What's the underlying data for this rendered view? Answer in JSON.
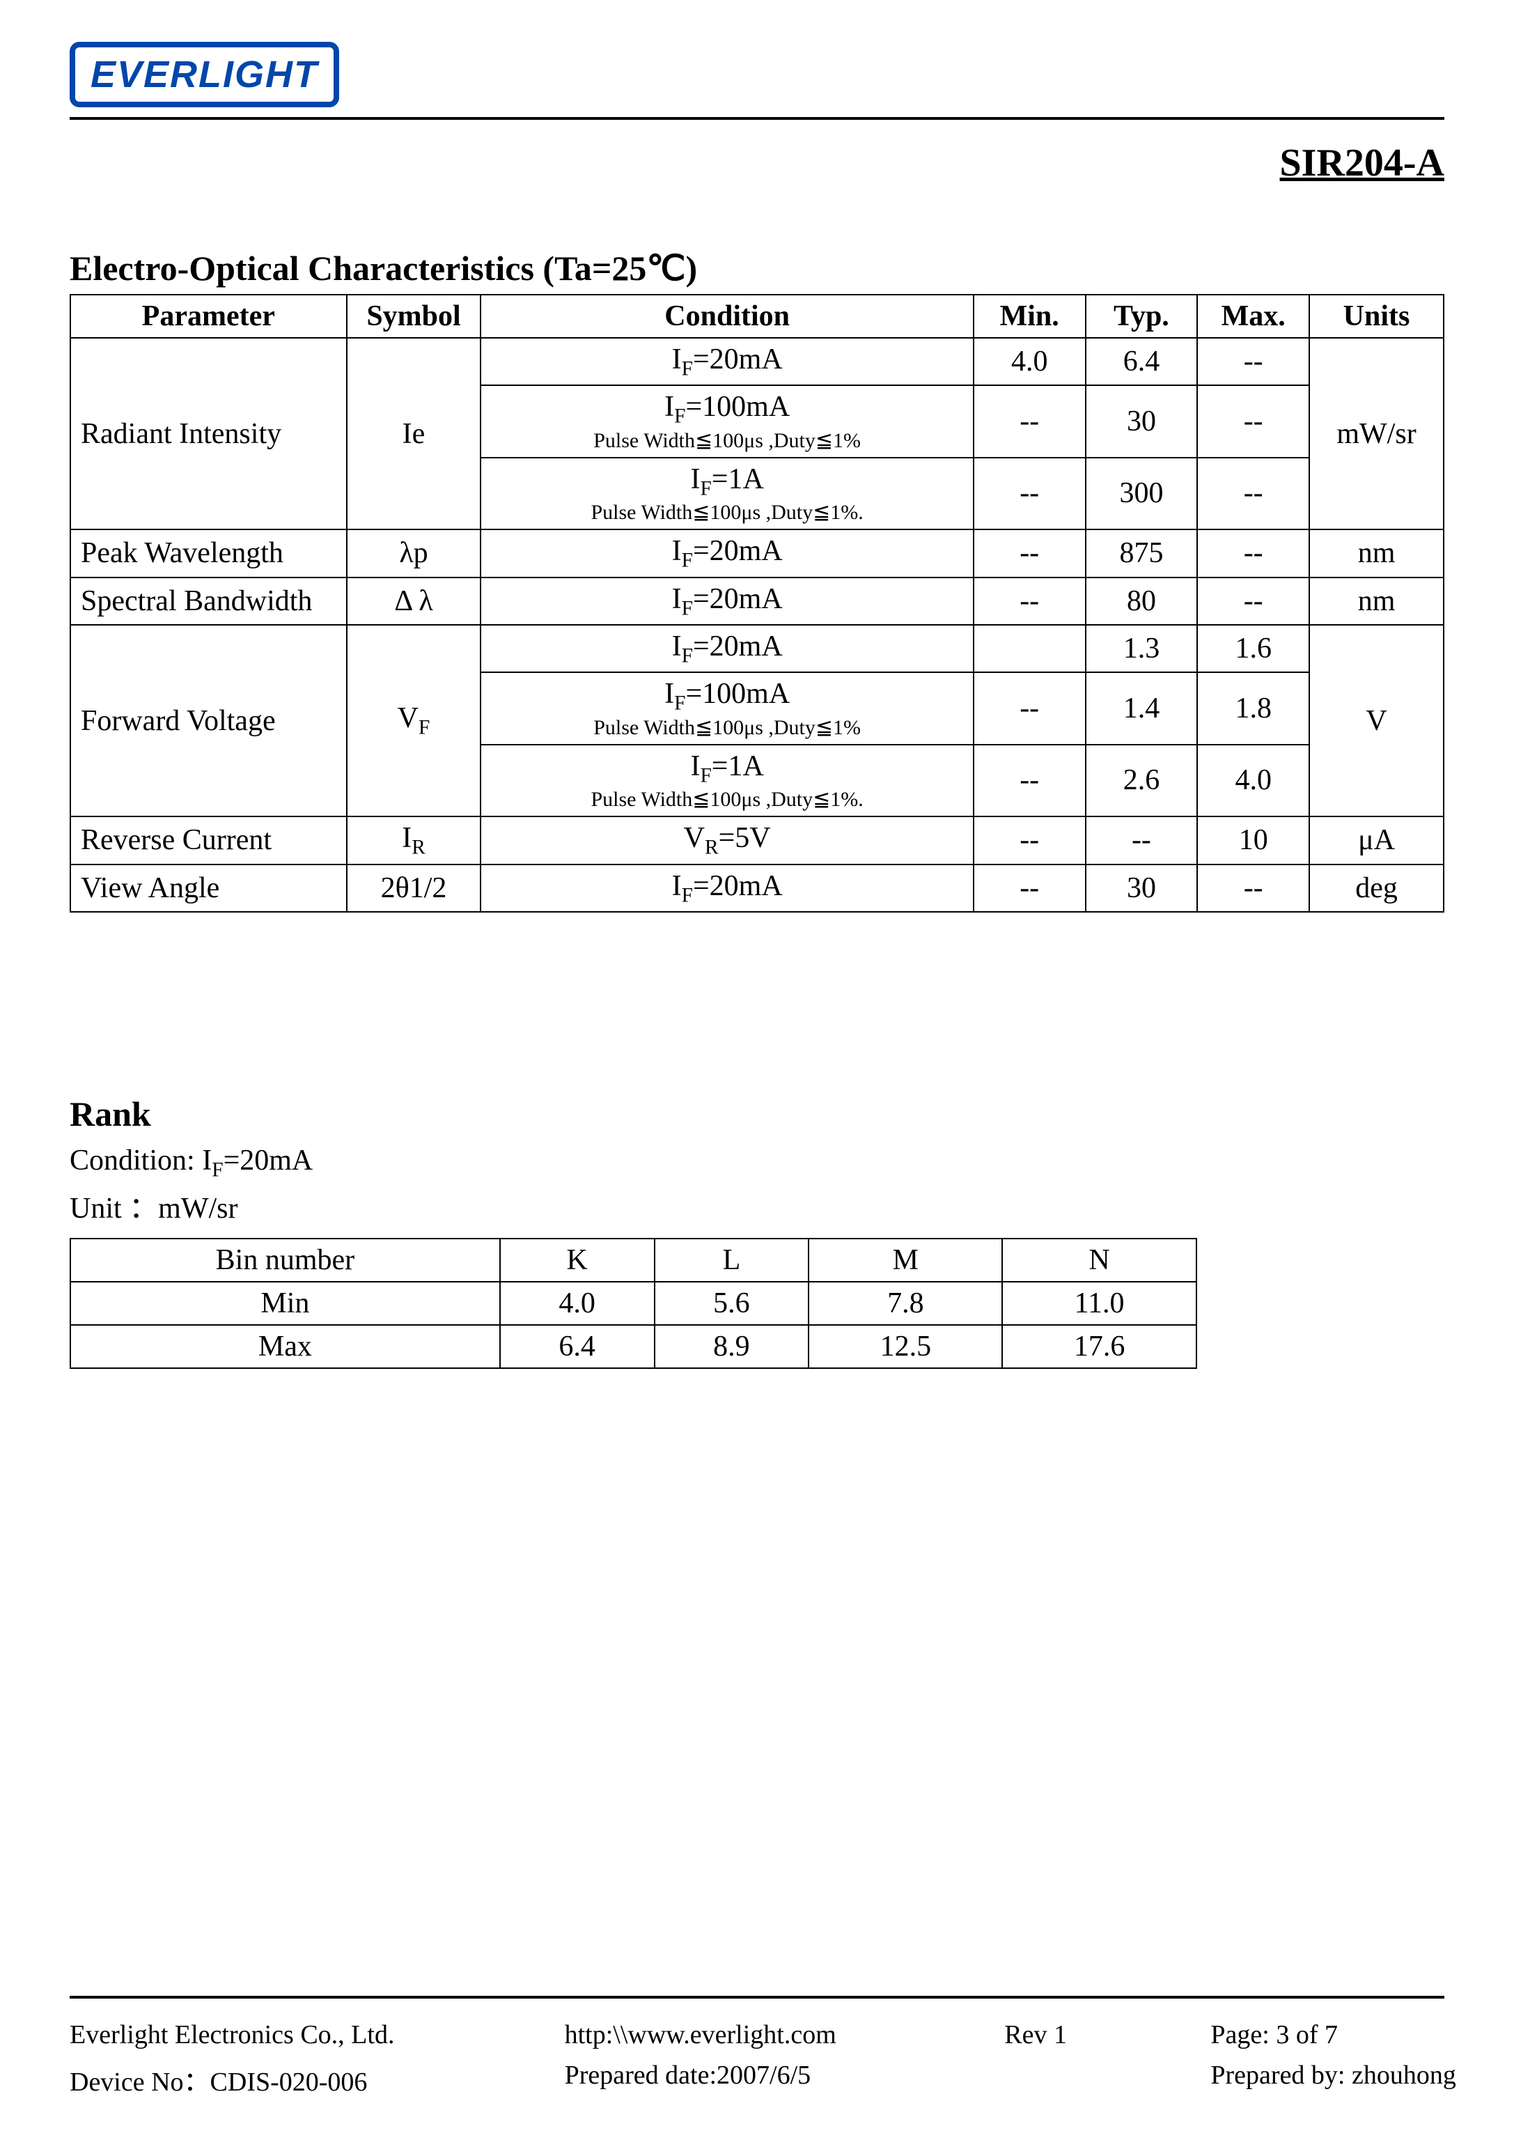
{
  "logo": {
    "text": "EVERLIGHT",
    "border_color": "#0047ab",
    "text_color": "#0047ab"
  },
  "part_number": "SIR204-A",
  "section1": {
    "title": "Electro-Optical Characteristics (Ta=25℃)",
    "columns": [
      "Parameter",
      "Symbol",
      "Condition",
      "Min.",
      "Typ.",
      "Max.",
      "Units"
    ]
  },
  "spec_rows": {
    "radiant_intensity": {
      "parameter": "Radiant Intensity",
      "symbol": "Ie",
      "units": "mW/sr",
      "rows": [
        {
          "cond_main": "I",
          "cond_main_sub": "F",
          "cond_main_tail": "=20mA",
          "cond_sub": "",
          "min": "4.0",
          "typ": "6.4",
          "max": "--"
        },
        {
          "cond_main": "I",
          "cond_main_sub": "F",
          "cond_main_tail": "=100mA",
          "cond_sub": "Pulse Width≦100μs ,Duty≦1%",
          "min": "--",
          "typ": "30",
          "max": "--"
        },
        {
          "cond_main": "I",
          "cond_main_sub": "F",
          "cond_main_tail": "=1A",
          "cond_sub": "Pulse Width≦100μs ,Duty≦1%.",
          "min": "--",
          "typ": "300",
          "max": "--"
        }
      ]
    },
    "peak_wavelength": {
      "parameter": "Peak Wavelength",
      "symbol": "λp",
      "cond_main": "I",
      "cond_main_sub": "F",
      "cond_main_tail": "=20mA",
      "min": "--",
      "typ": "875",
      "max": "--",
      "units": "nm"
    },
    "spectral_bandwidth": {
      "parameter": "Spectral Bandwidth",
      "symbol": "Δ λ",
      "cond_main": "I",
      "cond_main_sub": "F",
      "cond_main_tail": "=20mA",
      "min": "--",
      "typ": "80",
      "max": "--",
      "units": "nm"
    },
    "forward_voltage": {
      "parameter": "Forward Voltage",
      "symbol_main": "V",
      "symbol_sub": "F",
      "units": "V",
      "rows": [
        {
          "cond_main": "I",
          "cond_main_sub": "F",
          "cond_main_tail": "=20mA",
          "cond_sub": "",
          "min": "",
          "typ": "1.3",
          "max": "1.6"
        },
        {
          "cond_main": "I",
          "cond_main_sub": "F",
          "cond_main_tail": "=100mA",
          "cond_sub": "Pulse Width≦100μs ,Duty≦1%",
          "min": "--",
          "typ": "1.4",
          "max": "1.8"
        },
        {
          "cond_main": "I",
          "cond_main_sub": "F",
          "cond_main_tail": "=1A",
          "cond_sub": "Pulse Width≦100μs ,Duty≦1%.",
          "min": "--",
          "typ": "2.6",
          "max": "4.0"
        }
      ]
    },
    "reverse_current": {
      "parameter": "Reverse Current",
      "symbol_main": "I",
      "symbol_sub": "R",
      "cond_main": "V",
      "cond_main_sub": "R",
      "cond_main_tail": "=5V",
      "min": "--",
      "typ": "--",
      "max": "10",
      "units": "μA"
    },
    "view_angle": {
      "parameter": "View Angle",
      "symbol": "2θ1/2",
      "cond_main": "I",
      "cond_main_sub": "F",
      "cond_main_tail": "=20mA",
      "min": "--",
      "typ": "30",
      "max": "--",
      "units": "deg"
    }
  },
  "rank": {
    "title": "Rank",
    "condition_label": "Condition: ",
    "condition_main": "I",
    "condition_sub": "F",
    "condition_tail": "=20mA",
    "unit_label": "Unit ：mW/sr",
    "header": "Bin number",
    "bins": [
      "K",
      "L",
      "M",
      "N"
    ],
    "rows": [
      {
        "label": "Min",
        "values": [
          "4.0",
          "5.6",
          "7.8",
          "11.0"
        ]
      },
      {
        "label": "Max",
        "values": [
          "6.4",
          "8.9",
          "12.5",
          "17.6"
        ]
      }
    ]
  },
  "footer": {
    "company": "Everlight Electronics Co., Ltd.",
    "url": "http:\\\\www.everlight.com",
    "rev": "Rev 1",
    "page": "Page: 3 of 7",
    "device": "Device No：CDIS-020-006",
    "date": "Prepared date:2007/6/5",
    "blank": "",
    "by": "Prepared by: zhouhong"
  },
  "styling": {
    "page_bg": "#ffffff",
    "text_color": "#000000",
    "rule_color": "#000000",
    "table_border_color": "#000000",
    "body_font": "Times New Roman",
    "title_fontsize_pt": 37,
    "table_fontsize_pt": 32,
    "footer_fontsize_pt": 28,
    "part_no_fontsize_pt": 42
  }
}
